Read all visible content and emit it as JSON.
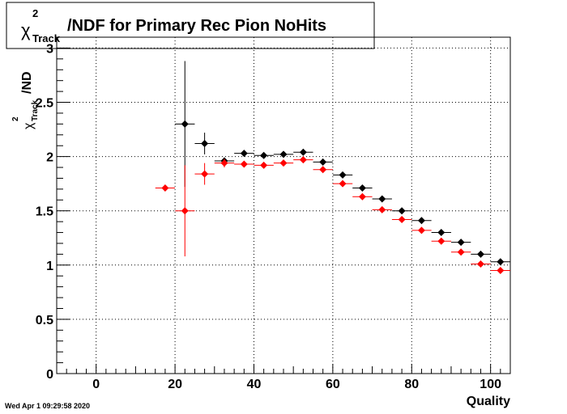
{
  "chart_data": {
    "type": "scatter",
    "title": {
      "symbol": "χ",
      "superscript": "2",
      "subscript": "Track",
      "text": "/NDF for Primary Rec Pion NoHits"
    },
    "xlabel": "Quality",
    "ylabel": {
      "symbol": "χ",
      "superscript": "2",
      "subscript": "Track",
      "text": "/ND"
    },
    "xlim": [
      -10,
      105
    ],
    "ylim": [
      0,
      3.1
    ],
    "grid": true,
    "x_ticks": [
      {
        "value": 0,
        "label": "0"
      },
      {
        "value": 20,
        "label": "20"
      },
      {
        "value": 40,
        "label": "40"
      },
      {
        "value": 60,
        "label": "60"
      },
      {
        "value": 80,
        "label": "80"
      },
      {
        "value": 100,
        "label": "100"
      }
    ],
    "y_ticks": [
      {
        "value": 0,
        "label": "0"
      },
      {
        "value": 0.5,
        "label": "0.5"
      },
      {
        "value": 1,
        "label": "1"
      },
      {
        "value": 1.5,
        "label": "1.5"
      },
      {
        "value": 2,
        "label": "2"
      },
      {
        "value": 2.5,
        "label": "2.5"
      },
      {
        "value": 3,
        "label": "3"
      }
    ],
    "series": [
      {
        "color": "#000000",
        "points": [
          {
            "x": 22.5,
            "y": 2.3,
            "xerr": 2.5,
            "yerr": 0.58
          },
          {
            "x": 27.5,
            "y": 2.12,
            "xerr": 2.5,
            "yerr": 0.1
          },
          {
            "x": 32.5,
            "y": 1.96,
            "xerr": 2.5,
            "yerr": 0.03
          },
          {
            "x": 37.5,
            "y": 2.03,
            "xerr": 2.5,
            "yerr": 0.02
          },
          {
            "x": 42.5,
            "y": 2.01,
            "xerr": 2.5,
            "yerr": 0.02
          },
          {
            "x": 47.5,
            "y": 2.02,
            "xerr": 2.5,
            "yerr": 0.02
          },
          {
            "x": 52.5,
            "y": 2.04,
            "xerr": 2.5,
            "yerr": 0.02
          },
          {
            "x": 57.5,
            "y": 1.95,
            "xerr": 2.5,
            "yerr": 0.02
          },
          {
            "x": 62.5,
            "y": 1.83,
            "xerr": 2.5,
            "yerr": 0.02
          },
          {
            "x": 67.5,
            "y": 1.71,
            "xerr": 2.5,
            "yerr": 0.02
          },
          {
            "x": 72.5,
            "y": 1.61,
            "xerr": 2.5,
            "yerr": 0.02
          },
          {
            "x": 77.5,
            "y": 1.5,
            "xerr": 2.5,
            "yerr": 0.02
          },
          {
            "x": 82.5,
            "y": 1.41,
            "xerr": 2.5,
            "yerr": 0.02
          },
          {
            "x": 87.5,
            "y": 1.3,
            "xerr": 2.5,
            "yerr": 0.02
          },
          {
            "x": 92.5,
            "y": 1.21,
            "xerr": 2.5,
            "yerr": 0.02
          },
          {
            "x": 97.5,
            "y": 1.1,
            "xerr": 2.5,
            "yerr": 0.02
          },
          {
            "x": 102.5,
            "y": 1.03,
            "xerr": 2.5,
            "yerr": 0.02
          }
        ]
      },
      {
        "color": "#ff0000",
        "points": [
          {
            "x": 17.5,
            "y": 1.71,
            "xerr": 2.5,
            "yerr": 0.0
          },
          {
            "x": 22.5,
            "y": 1.5,
            "xerr": 2.5,
            "yerr": 0.42
          },
          {
            "x": 27.5,
            "y": 1.84,
            "xerr": 2.5,
            "yerr": 0.1
          },
          {
            "x": 32.5,
            "y": 1.94,
            "xerr": 2.5,
            "yerr": 0.04
          },
          {
            "x": 37.5,
            "y": 1.93,
            "xerr": 2.5,
            "yerr": 0.02
          },
          {
            "x": 42.5,
            "y": 1.92,
            "xerr": 2.5,
            "yerr": 0.02
          },
          {
            "x": 47.5,
            "y": 1.94,
            "xerr": 2.5,
            "yerr": 0.02
          },
          {
            "x": 52.5,
            "y": 1.97,
            "xerr": 2.5,
            "yerr": 0.02
          },
          {
            "x": 57.5,
            "y": 1.88,
            "xerr": 2.5,
            "yerr": 0.02
          },
          {
            "x": 62.5,
            "y": 1.75,
            "xerr": 2.5,
            "yerr": 0.02
          },
          {
            "x": 67.5,
            "y": 1.63,
            "xerr": 2.5,
            "yerr": 0.02
          },
          {
            "x": 72.5,
            "y": 1.51,
            "xerr": 2.5,
            "yerr": 0.02
          },
          {
            "x": 77.5,
            "y": 1.42,
            "xerr": 2.5,
            "yerr": 0.02
          },
          {
            "x": 82.5,
            "y": 1.32,
            "xerr": 2.5,
            "yerr": 0.02
          },
          {
            "x": 87.5,
            "y": 1.22,
            "xerr": 2.5,
            "yerr": 0.02
          },
          {
            "x": 92.5,
            "y": 1.12,
            "xerr": 2.5,
            "yerr": 0.02
          },
          {
            "x": 97.5,
            "y": 1.01,
            "xerr": 2.5,
            "yerr": 0.02
          },
          {
            "x": 102.5,
            "y": 0.95,
            "xerr": 2.5,
            "yerr": 0.02
          }
        ]
      }
    ]
  },
  "footer": {
    "timestamp": "Wed Apr  1 09:29:58 2020"
  }
}
